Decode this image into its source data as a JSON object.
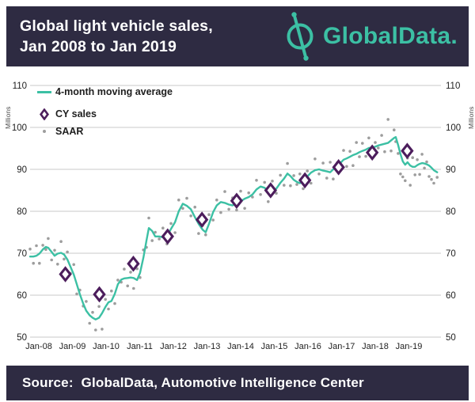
{
  "header": {
    "title_line1": "Global light vehicle sales,",
    "title_line2": "Jan 2008 to Jan 2019",
    "brand": "GlobalData."
  },
  "footer": {
    "source_text": "Source:  GlobalData, Automotive Intelligence Center"
  },
  "legend": {
    "items": [
      {
        "label": "4-month moving average",
        "marker": "teal-line"
      },
      {
        "label": "CY sales",
        "marker": "purple-diamond"
      },
      {
        "label": "SAAR",
        "marker": "gray-dot"
      }
    ]
  },
  "axes": {
    "y_unit_label": "Millions",
    "y_ticks": [
      110,
      100,
      90,
      80,
      70,
      60,
      50
    ],
    "x_tick_labels": [
      "Jan-08",
      "Jan-09",
      "Jan-10",
      "Jan-11",
      "Jan-12",
      "Jan-13",
      "Jan-14",
      "Jan-15",
      "Jan-16",
      "Jan-17",
      "Jan-18",
      "Jan-19"
    ]
  },
  "colors": {
    "bar_background": "#2e2b42",
    "teal": "#3cc0a4",
    "diamond_purple": "#4c1d5c",
    "saar_gray": "#9d9d9d",
    "grid": "#c9c9c9",
    "axis_text": "#1e1e1e",
    "title_text": "#ffffff"
  },
  "chart_data": {
    "type": "line",
    "title": "Global light vehicle sales, Jan 2008 to Jan 2019",
    "ylabel": "Millions",
    "ylim": [
      50,
      110
    ],
    "grid": "horizontal",
    "legend_position": "top-left-inside",
    "x_axis_years": [
      2008,
      2009,
      2010,
      2011,
      2012,
      2013,
      2014,
      2015,
      2016,
      2017,
      2018,
      2019
    ],
    "series": [
      {
        "name": "4-month moving average",
        "type": "line",
        "color": "#3cc0a4",
        "points": [
          [
            2007.74,
            69.2
          ],
          [
            2007.84,
            69.2
          ],
          [
            2007.93,
            69.4
          ],
          [
            2008.02,
            69.9
          ],
          [
            2008.12,
            70.9
          ],
          [
            2008.21,
            71.5
          ],
          [
            2008.28,
            71.3
          ],
          [
            2008.38,
            70.3
          ],
          [
            2008.47,
            69.4
          ],
          [
            2008.56,
            69.9
          ],
          [
            2008.66,
            70.1
          ],
          [
            2008.75,
            69.7
          ],
          [
            2008.85,
            68.5
          ],
          [
            2008.94,
            66.8
          ],
          [
            2009.04,
            64.9
          ],
          [
            2009.13,
            62.6
          ],
          [
            2009.22,
            60.2
          ],
          [
            2009.32,
            58.0
          ],
          [
            2009.41,
            56.3
          ],
          [
            2009.51,
            55.2
          ],
          [
            2009.6,
            54.6
          ],
          [
            2009.69,
            54.2
          ],
          [
            2009.79,
            54.6
          ],
          [
            2009.88,
            55.7
          ],
          [
            2009.98,
            57.2
          ],
          [
            2010.07,
            58.3
          ],
          [
            2010.16,
            58.6
          ],
          [
            2010.26,
            60.3
          ],
          [
            2010.35,
            62.6
          ],
          [
            2010.45,
            63.7
          ],
          [
            2010.54,
            64.0
          ],
          [
            2010.64,
            64.1
          ],
          [
            2010.73,
            64.2
          ],
          [
            2010.82,
            64.1
          ],
          [
            2010.92,
            63.6
          ],
          [
            2011.01,
            65.3
          ],
          [
            2011.11,
            69.0
          ],
          [
            2011.2,
            73.0
          ],
          [
            2011.27,
            76.0
          ],
          [
            2011.37,
            75.3
          ],
          [
            2011.46,
            74.0
          ],
          [
            2011.58,
            74.0
          ],
          [
            2011.69,
            73.8
          ],
          [
            2011.81,
            74.1
          ],
          [
            2011.93,
            75.8
          ],
          [
            2012.05,
            77.4
          ],
          [
            2012.16,
            80.0
          ],
          [
            2012.28,
            81.8
          ],
          [
            2012.4,
            81.3
          ],
          [
            2012.52,
            80.5
          ],
          [
            2012.64,
            78.6
          ],
          [
            2012.75,
            77.0
          ],
          [
            2012.87,
            75.6
          ],
          [
            2012.96,
            75.0
          ],
          [
            2013.06,
            77.0
          ],
          [
            2013.18,
            79.8
          ],
          [
            2013.29,
            81.4
          ],
          [
            2013.41,
            82.2
          ],
          [
            2013.53,
            82.0
          ],
          [
            2013.65,
            81.6
          ],
          [
            2013.76,
            81.4
          ],
          [
            2013.88,
            81.9
          ],
          [
            2014.0,
            82.4
          ],
          [
            2014.12,
            83.0
          ],
          [
            2014.24,
            83.4
          ],
          [
            2014.35,
            84.0
          ],
          [
            2014.47,
            85.2
          ],
          [
            2014.59,
            85.9
          ],
          [
            2014.71,
            85.6
          ],
          [
            2014.82,
            84.8
          ],
          [
            2014.94,
            84.5
          ],
          [
            2015.06,
            85.4
          ],
          [
            2015.18,
            86.8
          ],
          [
            2015.29,
            87.8
          ],
          [
            2015.39,
            89.0
          ],
          [
            2015.48,
            88.4
          ],
          [
            2015.58,
            87.5
          ],
          [
            2015.67,
            87.0
          ],
          [
            2015.76,
            86.7
          ],
          [
            2015.86,
            87.3
          ],
          [
            2015.98,
            88.3
          ],
          [
            2016.09,
            89.2
          ],
          [
            2016.21,
            89.8
          ],
          [
            2016.33,
            90.0
          ],
          [
            2016.45,
            89.7
          ],
          [
            2016.56,
            89.5
          ],
          [
            2016.66,
            89.3
          ],
          [
            2016.75,
            90.0
          ],
          [
            2016.87,
            90.6
          ],
          [
            2016.96,
            91.5
          ],
          [
            2017.06,
            92.3
          ],
          [
            2017.15,
            92.6
          ],
          [
            2017.25,
            93.0
          ],
          [
            2017.34,
            93.4
          ],
          [
            2017.44,
            93.7
          ],
          [
            2017.53,
            94.1
          ],
          [
            2017.62,
            94.4
          ],
          [
            2017.72,
            94.7
          ],
          [
            2017.81,
            95.1
          ],
          [
            2017.91,
            95.2
          ],
          [
            2018.0,
            95.4
          ],
          [
            2018.09,
            95.7
          ],
          [
            2018.19,
            95.9
          ],
          [
            2018.28,
            96.1
          ],
          [
            2018.38,
            96.3
          ],
          [
            2018.47,
            96.9
          ],
          [
            2018.56,
            97.5
          ],
          [
            2018.61,
            97.7
          ],
          [
            2018.68,
            95.8
          ],
          [
            2018.75,
            93.6
          ],
          [
            2018.82,
            91.9
          ],
          [
            2018.89,
            91.1
          ],
          [
            2018.96,
            91.7
          ],
          [
            2019.04,
            90.9
          ],
          [
            2019.11,
            90.6
          ],
          [
            2019.18,
            90.6
          ],
          [
            2019.25,
            91.0
          ],
          [
            2019.32,
            91.3
          ],
          [
            2019.39,
            91.5
          ],
          [
            2019.46,
            91.4
          ],
          [
            2019.53,
            91.2
          ],
          [
            2019.6,
            90.9
          ],
          [
            2019.67,
            90.4
          ],
          [
            2019.74,
            89.8
          ],
          [
            2019.84,
            89.3
          ]
        ]
      },
      {
        "name": "CY sales",
        "type": "scatter-diamond",
        "color": "#4c1d5c",
        "points_by_year": [
          {
            "year": "2008",
            "x": 2008.79,
            "value": 65.0
          },
          {
            "year": "2009",
            "x": 2009.8,
            "value": 60.2
          },
          {
            "year": "2010",
            "x": 2010.81,
            "value": 67.5
          },
          {
            "year": "2011",
            "x": 2011.83,
            "value": 74.0
          },
          {
            "year": "2012",
            "x": 2012.85,
            "value": 78.0
          },
          {
            "year": "2013",
            "x": 2013.88,
            "value": 82.5
          },
          {
            "year": "2014",
            "x": 2014.89,
            "value": 85.0
          },
          {
            "year": "2015",
            "x": 2015.91,
            "value": 87.4
          },
          {
            "year": "2016",
            "x": 2016.91,
            "value": 90.5
          },
          {
            "year": "2017",
            "x": 2017.91,
            "value": 94.0
          },
          {
            "year": "2018",
            "x": 2018.95,
            "value": 94.4
          }
        ]
      },
      {
        "name": "SAAR",
        "type": "scatter-dot",
        "color": "#9d9d9d",
        "points": [
          [
            2007.74,
            71.0
          ],
          [
            2007.84,
            67.6
          ],
          [
            2007.93,
            71.8
          ],
          [
            2008.02,
            67.6
          ],
          [
            2008.12,
            71.9
          ],
          [
            2008.21,
            70.9
          ],
          [
            2008.28,
            73.5
          ],
          [
            2008.38,
            68.4
          ],
          [
            2008.47,
            70.7
          ],
          [
            2008.56,
            67.4
          ],
          [
            2008.66,
            72.8
          ],
          [
            2008.75,
            68.6
          ],
          [
            2008.85,
            70.3
          ],
          [
            2008.94,
            65.2
          ],
          [
            2009.04,
            67.3
          ],
          [
            2009.13,
            60.3
          ],
          [
            2009.22,
            61.2
          ],
          [
            2009.32,
            57.4
          ],
          [
            2009.41,
            58.5
          ],
          [
            2009.51,
            53.3
          ],
          [
            2009.6,
            55.9
          ],
          [
            2009.69,
            51.7
          ],
          [
            2009.79,
            57.3
          ],
          [
            2009.88,
            51.9
          ],
          [
            2009.98,
            59.0
          ],
          [
            2010.07,
            56.7
          ],
          [
            2010.16,
            61.0
          ],
          [
            2010.26,
            58.0
          ],
          [
            2010.35,
            63.6
          ],
          [
            2010.45,
            63.1
          ],
          [
            2010.54,
            66.2
          ],
          [
            2010.64,
            62.2
          ],
          [
            2010.73,
            65.5
          ],
          [
            2010.82,
            61.6
          ],
          [
            2010.92,
            66.3
          ],
          [
            2011.01,
            64.2
          ],
          [
            2011.11,
            70.8
          ],
          [
            2011.2,
            71.4
          ],
          [
            2011.27,
            78.4
          ],
          [
            2011.37,
            73.0
          ],
          [
            2011.46,
            75.0
          ],
          [
            2011.58,
            73.4
          ],
          [
            2011.69,
            76.0
          ],
          [
            2011.81,
            72.2
          ],
          [
            2011.93,
            77.1
          ],
          [
            2012.05,
            74.9
          ],
          [
            2012.16,
            82.7
          ],
          [
            2012.28,
            80.7
          ],
          [
            2012.4,
            83.1
          ],
          [
            2012.52,
            78.9
          ],
          [
            2012.64,
            81.0
          ],
          [
            2012.75,
            74.7
          ],
          [
            2012.87,
            76.6
          ],
          [
            2012.96,
            74.4
          ],
          [
            2013.06,
            79.2
          ],
          [
            2013.18,
            77.9
          ],
          [
            2013.29,
            82.7
          ],
          [
            2013.41,
            79.7
          ],
          [
            2013.53,
            84.7
          ],
          [
            2013.65,
            80.5
          ],
          [
            2013.76,
            83.2
          ],
          [
            2013.88,
            80.3
          ],
          [
            2014.0,
            84.8
          ],
          [
            2014.12,
            80.7
          ],
          [
            2014.24,
            84.4
          ],
          [
            2014.35,
            83.4
          ],
          [
            2014.47,
            87.4
          ],
          [
            2014.59,
            84.0
          ],
          [
            2014.71,
            86.9
          ],
          [
            2014.82,
            82.3
          ],
          [
            2014.94,
            87.2
          ],
          [
            2015.06,
            84.3
          ],
          [
            2015.18,
            88.6
          ],
          [
            2015.29,
            86.2
          ],
          [
            2015.39,
            91.4
          ],
          [
            2015.48,
            86.1
          ],
          [
            2015.58,
            88.5
          ],
          [
            2015.67,
            86.4
          ],
          [
            2015.76,
            88.9
          ],
          [
            2015.86,
            85.4
          ],
          [
            2015.98,
            89.6
          ],
          [
            2016.09,
            86.7
          ],
          [
            2016.21,
            92.5
          ],
          [
            2016.33,
            88.9
          ],
          [
            2016.45,
            91.5
          ],
          [
            2016.56,
            87.9
          ],
          [
            2016.66,
            91.7
          ],
          [
            2016.75,
            87.7
          ],
          [
            2016.87,
            91.6
          ],
          [
            2016.96,
            90.9
          ],
          [
            2017.06,
            94.5
          ],
          [
            2017.15,
            90.7
          ],
          [
            2017.25,
            94.3
          ],
          [
            2017.34,
            90.9
          ],
          [
            2017.44,
            96.4
          ],
          [
            2017.53,
            93.0
          ],
          [
            2017.62,
            96.2
          ],
          [
            2017.72,
            93.1
          ],
          [
            2017.81,
            97.5
          ],
          [
            2017.91,
            92.9
          ],
          [
            2018.0,
            96.4
          ],
          [
            2018.09,
            95.1
          ],
          [
            2018.19,
            98.1
          ],
          [
            2018.28,
            94.2
          ],
          [
            2018.38,
            101.9
          ],
          [
            2018.47,
            94.4
          ],
          [
            2018.56,
            99.4
          ],
          [
            2018.61,
            96.6
          ],
          [
            2018.68,
            93.8
          ],
          [
            2018.75,
            88.9
          ],
          [
            2018.82,
            88.2
          ],
          [
            2018.89,
            87.3
          ],
          [
            2018.96,
            92.7
          ],
          [
            2019.04,
            86.2
          ],
          [
            2019.11,
            92.8
          ],
          [
            2019.18,
            88.7
          ],
          [
            2019.25,
            92.3
          ],
          [
            2019.32,
            88.8
          ],
          [
            2019.39,
            93.6
          ],
          [
            2019.46,
            90.3
          ],
          [
            2019.53,
            91.8
          ],
          [
            2019.6,
            88.3
          ],
          [
            2019.67,
            87.6
          ],
          [
            2019.74,
            86.7
          ],
          [
            2019.84,
            88.1
          ]
        ]
      }
    ]
  }
}
